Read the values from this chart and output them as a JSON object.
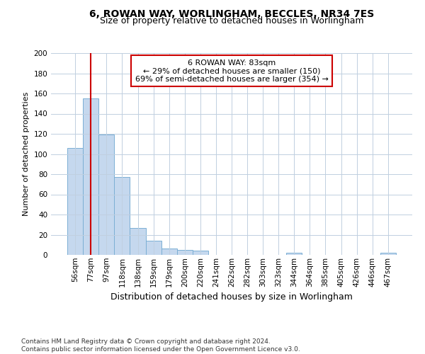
{
  "title_line1": "6, ROWAN WAY, WORLINGHAM, BECCLES, NR34 7ES",
  "title_line2": "Size of property relative to detached houses in Worlingham",
  "xlabel": "Distribution of detached houses by size in Worlingham",
  "ylabel": "Number of detached properties",
  "categories": [
    "56sqm",
    "77sqm",
    "97sqm",
    "118sqm",
    "138sqm",
    "159sqm",
    "179sqm",
    "200sqm",
    "220sqm",
    "241sqm",
    "262sqm",
    "282sqm",
    "303sqm",
    "323sqm",
    "344sqm",
    "364sqm",
    "385sqm",
    "405sqm",
    "426sqm",
    "446sqm",
    "467sqm"
  ],
  "values": [
    106,
    155,
    119,
    77,
    27,
    14,
    6,
    5,
    4,
    0,
    0,
    0,
    0,
    0,
    2,
    0,
    0,
    0,
    0,
    0,
    2
  ],
  "bar_color": "#c5d8ee",
  "bar_edge_color": "#7bafd4",
  "vline_x_index": 1,
  "vline_color": "#cc0000",
  "annotation_text": "6 ROWAN WAY: 83sqm\n← 29% of detached houses are smaller (150)\n69% of semi-detached houses are larger (354) →",
  "annotation_box_color": "#ffffff",
  "annotation_box_edge_color": "#cc0000",
  "ylim": [
    0,
    200
  ],
  "background_color": "#ffffff",
  "grid_color": "#c0cfe0",
  "footnote": "Contains HM Land Registry data © Crown copyright and database right 2024.\nContains public sector information licensed under the Open Government Licence v3.0.",
  "title_fontsize": 10,
  "subtitle_fontsize": 9,
  "xlabel_fontsize": 9,
  "ylabel_fontsize": 8,
  "tick_fontsize": 7.5,
  "annotation_fontsize": 8,
  "footnote_fontsize": 6.5
}
